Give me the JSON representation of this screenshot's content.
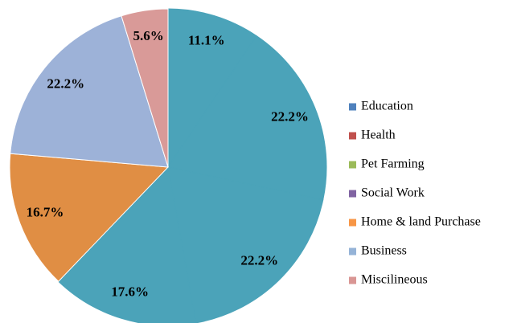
{
  "chart_data": {
    "type": "pie",
    "categories": [
      "Education",
      "Health",
      "Pet Farming",
      "Social Work",
      "Home & land Purchase",
      "Business",
      "Miscilineous"
    ],
    "values": [
      11.1,
      22.2,
      22.2,
      17.6,
      16.7,
      22.2,
      5.6
    ],
    "value_labels": [
      "11.1%",
      "22.2%",
      "22.2%",
      "17.6%",
      "16.7%",
      "22.2%",
      "5.6%"
    ],
    "colors": [
      "#4f81bd",
      "#c0504d",
      "#9bbb59",
      "#8064a2",
      "#f79646",
      "#95b3d7",
      "#d99694"
    ],
    "slice_colors": [
      "#4ba3b9",
      "#4ba3b9",
      "#4ba3b9",
      "#4ba3b9",
      "#e08e44",
      "#9db2d8",
      "#d99a98"
    ],
    "legend": "right"
  }
}
